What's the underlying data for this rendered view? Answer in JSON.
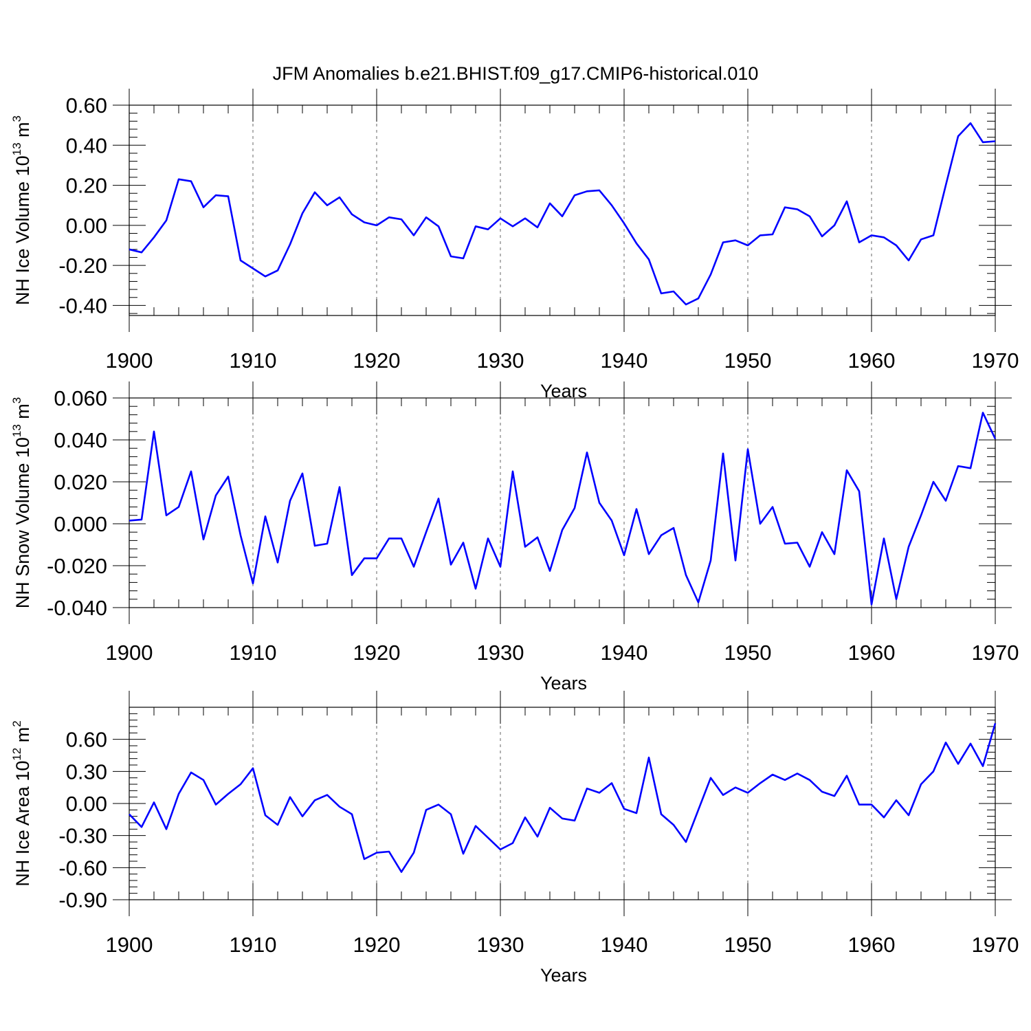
{
  "title": "JFM Anomalies b.e21.BHIST.f09_g17.CMIP6-historical.010",
  "colors": {
    "line": "#0000ff",
    "axis": "#000000",
    "grid": "#555555"
  },
  "chart_data": [
    {
      "type": "line",
      "title": "JFM Anomalies b.e21.BHIST.f09_g17.CMIP6-historical.010",
      "xlabel": "Years",
      "ylabel_main": "NH Ice Volume 10",
      "ylabel_exp": "13",
      "ylabel_unit": " m",
      "ylabel_unit_exp": "3",
      "xlim": [
        1900,
        1970
      ],
      "ylim": [
        -0.45,
        0.6
      ],
      "yticks": [
        -0.4,
        -0.2,
        0.0,
        0.2,
        0.4,
        0.6
      ],
      "ytick_labels": [
        "-0.40",
        "-0.20",
        "0.00",
        "0.20",
        "0.40",
        "0.60"
      ],
      "xticks": [
        1900,
        1910,
        1920,
        1930,
        1940,
        1950,
        1960,
        1970
      ],
      "xtick_labels": [
        "1900",
        "1910",
        "1920",
        "1930",
        "1940",
        "1950",
        "1960",
        "1970"
      ],
      "grid_x": true,
      "series": [
        {
          "name": "NH Ice Volume",
          "x_start": 1900,
          "values": [
            -0.12,
            -0.135,
            -0.06,
            0.025,
            0.23,
            0.22,
            0.09,
            0.15,
            0.145,
            -0.175,
            -0.215,
            -0.255,
            -0.225,
            -0.095,
            0.06,
            0.165,
            0.1,
            0.14,
            0.055,
            0.015,
            0.0,
            0.04,
            0.03,
            -0.05,
            0.04,
            -0.005,
            -0.155,
            -0.165,
            -0.005,
            -0.02,
            0.035,
            -0.005,
            0.035,
            -0.01,
            0.11,
            0.045,
            0.15,
            0.17,
            0.175,
            0.1,
            0.01,
            -0.09,
            -0.17,
            -0.34,
            -0.33,
            -0.395,
            -0.365,
            -0.245,
            -0.085,
            -0.075,
            -0.1,
            -0.05,
            -0.045,
            0.09,
            0.08,
            0.045,
            -0.055,
            0.0,
            0.12,
            -0.085,
            -0.05,
            -0.06,
            -0.1,
            -0.175,
            -0.07,
            -0.05,
            0.2,
            0.445,
            0.51,
            0.415,
            0.42
          ]
        }
      ]
    },
    {
      "type": "line",
      "xlabel": "Years",
      "ylabel_main": "NH Snow Volume 10",
      "ylabel_exp": "13",
      "ylabel_unit": " m",
      "ylabel_unit_exp": "3",
      "xlim": [
        1900,
        1970
      ],
      "ylim": [
        -0.04,
        0.06
      ],
      "yticks": [
        -0.04,
        -0.02,
        0.0,
        0.02,
        0.04,
        0.06
      ],
      "ytick_labels": [
        "-0.040",
        "-0.020",
        "0.000",
        "0.020",
        "0.040",
        "0.060"
      ],
      "xticks": [
        1900,
        1910,
        1920,
        1930,
        1940,
        1950,
        1960,
        1970
      ],
      "xtick_labels": [
        "1900",
        "1910",
        "1920",
        "1930",
        "1940",
        "1950",
        "1960",
        "1970"
      ],
      "grid_x": true,
      "series": [
        {
          "name": "NH Snow Volume",
          "x_start": 1900,
          "values": [
            0.0015,
            0.002,
            0.044,
            0.004,
            0.008,
            0.025,
            -0.0075,
            0.0135,
            0.0225,
            -0.0055,
            -0.0285,
            0.0035,
            -0.0185,
            0.011,
            0.024,
            -0.0105,
            -0.0095,
            0.0175,
            -0.0245,
            -0.0165,
            -0.0165,
            -0.007,
            -0.007,
            -0.0205,
            -0.004,
            0.012,
            -0.0195,
            -0.009,
            -0.031,
            -0.007,
            -0.0205,
            0.025,
            -0.011,
            -0.0065,
            -0.0225,
            -0.003,
            0.0075,
            0.034,
            0.01,
            0.0015,
            -0.015,
            0.007,
            -0.0145,
            -0.0055,
            -0.002,
            -0.0245,
            -0.0375,
            -0.0175,
            0.0335,
            -0.0175,
            0.0355,
            0.0,
            0.008,
            -0.0095,
            -0.009,
            -0.0205,
            -0.004,
            -0.0145,
            0.0255,
            0.0155,
            -0.0385,
            -0.007,
            -0.036,
            -0.011,
            0.004,
            0.02,
            0.011,
            0.0275,
            0.0265,
            0.053,
            0.0405
          ]
        }
      ]
    },
    {
      "type": "line",
      "xlabel": "Years",
      "ylabel_main": "NH Ice Area 10",
      "ylabel_exp": "12",
      "ylabel_unit": " m",
      "ylabel_unit_exp": "2",
      "xlim": [
        1900,
        1970
      ],
      "ylim": [
        -0.9,
        0.9
      ],
      "yticks": [
        -0.9,
        -0.6,
        -0.3,
        0.0,
        0.3,
        0.6
      ],
      "ytick_labels": [
        "-0.90",
        "-0.60",
        "-0.30",
        "0.00",
        "0.30",
        "0.60"
      ],
      "xticks": [
        1900,
        1910,
        1920,
        1930,
        1940,
        1950,
        1960,
        1970
      ],
      "xtick_labels": [
        "1900",
        "1910",
        "1920",
        "1930",
        "1940",
        "1950",
        "1960",
        "1970"
      ],
      "grid_x": true,
      "series": [
        {
          "name": "NH Ice Area",
          "x_start": 1900,
          "values": [
            -0.1,
            -0.22,
            0.01,
            -0.24,
            0.09,
            0.29,
            0.22,
            -0.01,
            0.09,
            0.18,
            0.33,
            -0.11,
            -0.2,
            0.06,
            -0.12,
            0.03,
            0.08,
            -0.03,
            -0.1,
            -0.52,
            -0.46,
            -0.45,
            -0.64,
            -0.46,
            -0.06,
            -0.01,
            -0.1,
            -0.47,
            -0.21,
            -0.32,
            -0.43,
            -0.37,
            -0.13,
            -0.31,
            -0.04,
            -0.14,
            -0.16,
            0.14,
            0.1,
            0.19,
            -0.05,
            -0.09,
            0.43,
            -0.1,
            -0.2,
            -0.36,
            -0.06,
            0.24,
            0.08,
            0.15,
            0.1,
            0.19,
            0.27,
            0.22,
            0.28,
            0.22,
            0.11,
            0.07,
            0.26,
            -0.01,
            -0.01,
            -0.13,
            0.03,
            -0.11,
            0.18,
            0.3,
            0.57,
            0.37,
            0.56,
            0.35,
            0.75
          ]
        }
      ]
    }
  ]
}
